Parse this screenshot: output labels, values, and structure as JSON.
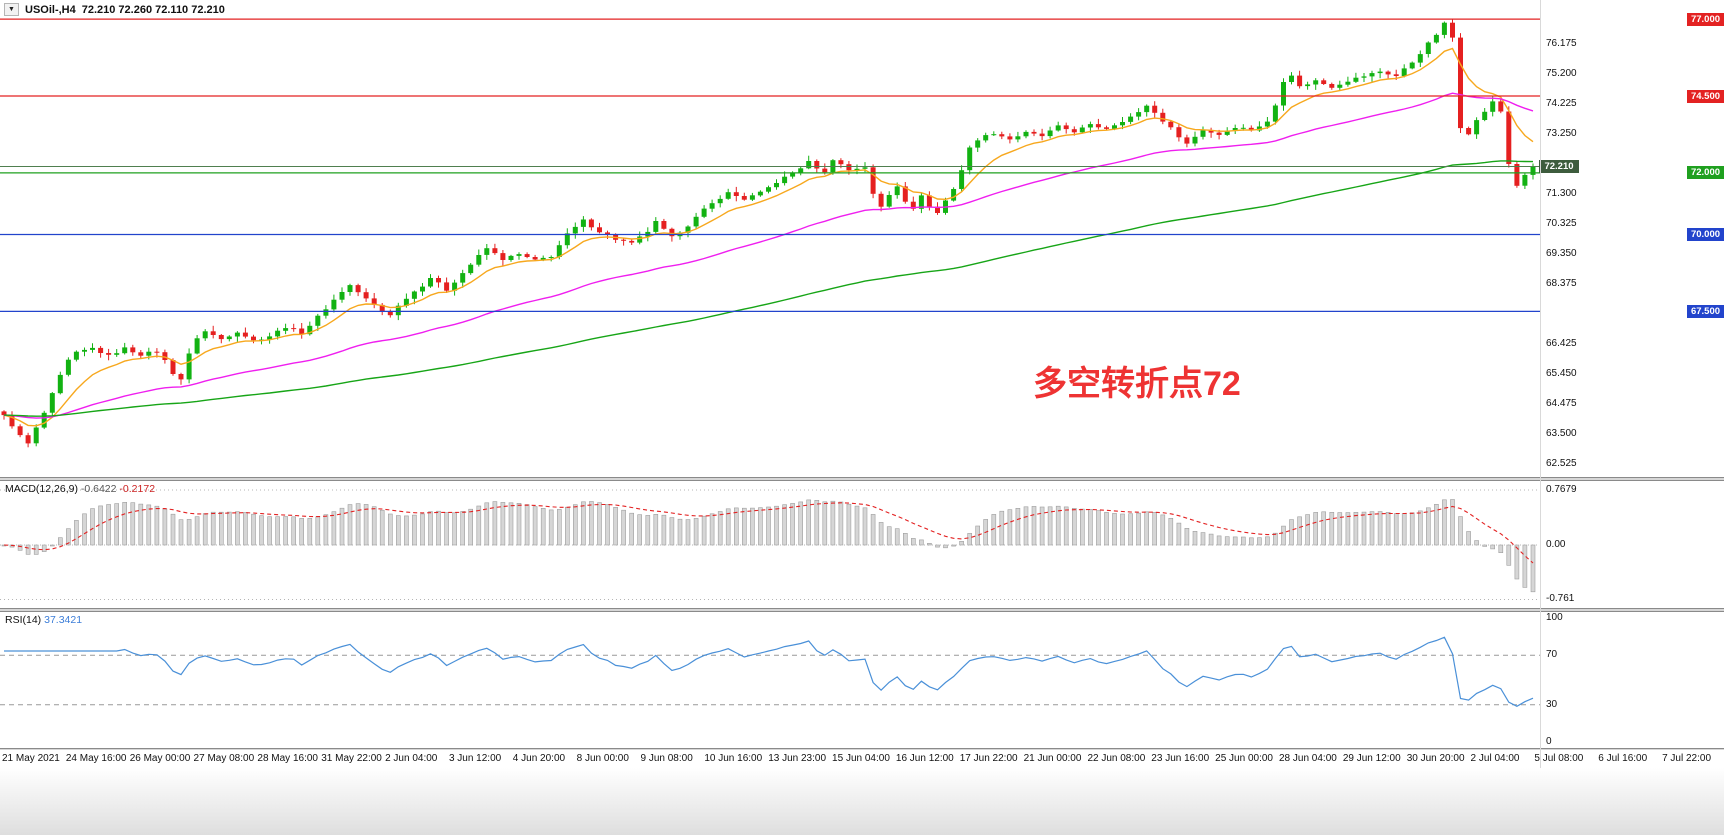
{
  "header": {
    "dropdown_icon": "▼",
    "symbol": "USOil-,H4",
    "ohlc": "72.210 72.260 72.110 72.210"
  },
  "chart_data": {
    "type": "candlestick",
    "symbol": "USOil-",
    "timeframe": "H4",
    "ohlc": {
      "open": 72.21,
      "high": 72.26,
      "low": 72.11,
      "close": 72.21
    },
    "candle_count": 191,
    "candle_up_color": "#12b212",
    "candle_down_color": "#e52020",
    "y_ticks": [
      {
        "v": 76.175,
        "t": "76.175"
      },
      {
        "v": 75.2,
        "t": "75.200"
      },
      {
        "v": 74.225,
        "t": "74.225"
      },
      {
        "v": 73.25,
        "t": "73.250"
      },
      {
        "v": 71.3,
        "t": "71.300"
      },
      {
        "v": 70.325,
        "t": "70.325"
      },
      {
        "v": 69.35,
        "t": "69.350"
      },
      {
        "v": 68.375,
        "t": "68.375"
      },
      {
        "v": 66.425,
        "t": "66.425"
      },
      {
        "v": 65.45,
        "t": "65.450"
      },
      {
        "v": 64.475,
        "t": "64.475"
      },
      {
        "v": 63.5,
        "t": "63.500"
      },
      {
        "v": 62.525,
        "t": "62.525"
      }
    ],
    "h_lines": [
      {
        "price": 77.0,
        "label": "77.000",
        "color": "#e32222"
      },
      {
        "price": 74.5,
        "label": "74.500",
        "color": "#e32222"
      },
      {
        "price": 72.0,
        "label": "72.000",
        "color": "#1fa01f"
      },
      {
        "price": 70.0,
        "label": "70.000",
        "color": "#2244cc"
      },
      {
        "price": 67.5,
        "label": "67.500",
        "color": "#2244cc"
      }
    ],
    "current_price": {
      "value": 72.21,
      "label": "72.210",
      "line_color": "#4f7f4f",
      "badge_bg": "#3d5c3d"
    },
    "close_anchors": [
      [
        0,
        64.1
      ],
      [
        1,
        63.8
      ],
      [
        2,
        63.45
      ],
      [
        3,
        63.2
      ],
      [
        4,
        63.7
      ],
      [
        5,
        64.2
      ],
      [
        6,
        64.8
      ],
      [
        7,
        65.4
      ],
      [
        8,
        65.9
      ],
      [
        9,
        66.15
      ],
      [
        11,
        66.3
      ],
      [
        13,
        66.05
      ],
      [
        15,
        66.3
      ],
      [
        17,
        66.1
      ],
      [
        19,
        66.2
      ],
      [
        20,
        65.9
      ],
      [
        21,
        65.5
      ],
      [
        22,
        65.3
      ],
      [
        23,
        66.1
      ],
      [
        24,
        66.65
      ],
      [
        25,
        66.85
      ],
      [
        27,
        66.6
      ],
      [
        29,
        66.85
      ],
      [
        31,
        66.55
      ],
      [
        33,
        66.7
      ],
      [
        35,
        67.0
      ],
      [
        37,
        66.8
      ],
      [
        38,
        67.05
      ],
      [
        40,
        67.6
      ],
      [
        42,
        68.15
      ],
      [
        43,
        68.35
      ],
      [
        45,
        67.9
      ],
      [
        47,
        67.5
      ],
      [
        48,
        67.4
      ],
      [
        50,
        67.95
      ],
      [
        52,
        68.35
      ],
      [
        53,
        68.6
      ],
      [
        55,
        68.2
      ],
      [
        57,
        68.75
      ],
      [
        59,
        69.3
      ],
      [
        60,
        69.55
      ],
      [
        62,
        69.2
      ],
      [
        64,
        69.35
      ],
      [
        66,
        69.15
      ],
      [
        68,
        69.3
      ],
      [
        70,
        70.0
      ],
      [
        72,
        70.45
      ],
      [
        74,
        70.1
      ],
      [
        76,
        69.85
      ],
      [
        78,
        69.7
      ],
      [
        80,
        70.1
      ],
      [
        81,
        70.4
      ],
      [
        83,
        69.9
      ],
      [
        85,
        70.3
      ],
      [
        87,
        70.8
      ],
      [
        89,
        71.2
      ],
      [
        90,
        71.35
      ],
      [
        92,
        71.15
      ],
      [
        94,
        71.35
      ],
      [
        96,
        71.7
      ],
      [
        98,
        72.0
      ],
      [
        100,
        72.35
      ],
      [
        102,
        72.0
      ],
      [
        103,
        72.45
      ],
      [
        105,
        72.1
      ],
      [
        107,
        72.2
      ],
      [
        108,
        71.3
      ],
      [
        109,
        70.9
      ],
      [
        110,
        71.3
      ],
      [
        111,
        71.6
      ],
      [
        112,
        71.1
      ],
      [
        113,
        70.8
      ],
      [
        114,
        71.3
      ],
      [
        115,
        70.9
      ],
      [
        116,
        70.7
      ],
      [
        117,
        71.1
      ],
      [
        118,
        71.5
      ],
      [
        119,
        72.1
      ],
      [
        120,
        72.8
      ],
      [
        121,
        73.1
      ],
      [
        123,
        73.3
      ],
      [
        125,
        73.1
      ],
      [
        127,
        73.3
      ],
      [
        129,
        73.2
      ],
      [
        131,
        73.5
      ],
      [
        133,
        73.35
      ],
      [
        135,
        73.55
      ],
      [
        137,
        73.45
      ],
      [
        139,
        73.7
      ],
      [
        141,
        73.95
      ],
      [
        142,
        74.2
      ],
      [
        144,
        73.7
      ],
      [
        146,
        73.2
      ],
      [
        147,
        72.95
      ],
      [
        149,
        73.4
      ],
      [
        151,
        73.25
      ],
      [
        153,
        73.5
      ],
      [
        155,
        73.4
      ],
      [
        157,
        73.65
      ],
      [
        158,
        74.2
      ],
      [
        159,
        75.0
      ],
      [
        160,
        75.2
      ],
      [
        161,
        74.8
      ],
      [
        163,
        75.0
      ],
      [
        165,
        74.8
      ],
      [
        167,
        75.0
      ],
      [
        169,
        75.15
      ],
      [
        171,
        75.3
      ],
      [
        173,
        75.15
      ],
      [
        175,
        75.6
      ],
      [
        176,
        75.9
      ],
      [
        177,
        76.2
      ],
      [
        178,
        76.5
      ],
      [
        179,
        76.85
      ],
      [
        180,
        76.4
      ],
      [
        181,
        73.5
      ],
      [
        182,
        73.3
      ],
      [
        183,
        73.7
      ],
      [
        184,
        74.0
      ],
      [
        185,
        74.3
      ],
      [
        186,
        74.0
      ],
      [
        187,
        72.3
      ],
      [
        188,
        71.6
      ],
      [
        189,
        71.9
      ],
      [
        190,
        72.21
      ]
    ],
    "ma_lines": [
      {
        "name": "ma-fast",
        "period": 9,
        "color": "#f7a81e"
      },
      {
        "name": "ma-mid",
        "period": 45,
        "color": "#ef1fef"
      },
      {
        "name": "ma-slow",
        "period": 130,
        "color": "#17a517"
      }
    ],
    "annotation": {
      "text": "多空转折点72",
      "color": "#ee3333"
    },
    "macd": {
      "label": "MACD(12,26,9)",
      "main_value": "-0.6422",
      "signal_value": "-0.2172",
      "fast": 12,
      "slow": 26,
      "signal": 9,
      "axis": [
        {
          "v": 0.7679,
          "t": "0.7679"
        },
        {
          "v": 0,
          "t": "0.00"
        },
        {
          "v": -0.761,
          "t": "-0.761"
        }
      ],
      "hist_color": "#d6d6d6",
      "hist_stroke": "#9d9d9d",
      "signal_color": "#e32222"
    },
    "rsi": {
      "label": "RSI(14)",
      "value": "37.3421",
      "period": 14,
      "axis": [
        {
          "v": 100,
          "t": "100"
        },
        {
          "v": 70,
          "t": "70"
        },
        {
          "v": 30,
          "t": "30"
        },
        {
          "v": 0,
          "t": "0"
        }
      ],
      "levels": [
        70,
        30
      ],
      "line_color": "#4a90d8"
    },
    "x_labels": [
      "21 May 2021",
      "24 May 16:00",
      "26 May 00:00",
      "27 May 08:00",
      "28 May 16:00",
      "31 May 22:00",
      "2 Jun 04:00",
      "3 Jun 12:00",
      "4 Jun 20:00",
      "8 Jun 00:00",
      "9 Jun 08:00",
      "10 Jun 16:00",
      "13 Jun 23:00",
      "15 Jun 04:00",
      "16 Jun 12:00",
      "17 Jun 22:00",
      "21 Jun 00:00",
      "22 Jun 08:00",
      "23 Jun 16:00",
      "25 Jun 00:00",
      "28 Jun 04:00",
      "29 Jun 12:00",
      "30 Jun 20:00",
      "2 Jul 04:00",
      "5 Jul 08:00",
      "6 Jul 16:00",
      "7 Jul 22:00"
    ]
  }
}
